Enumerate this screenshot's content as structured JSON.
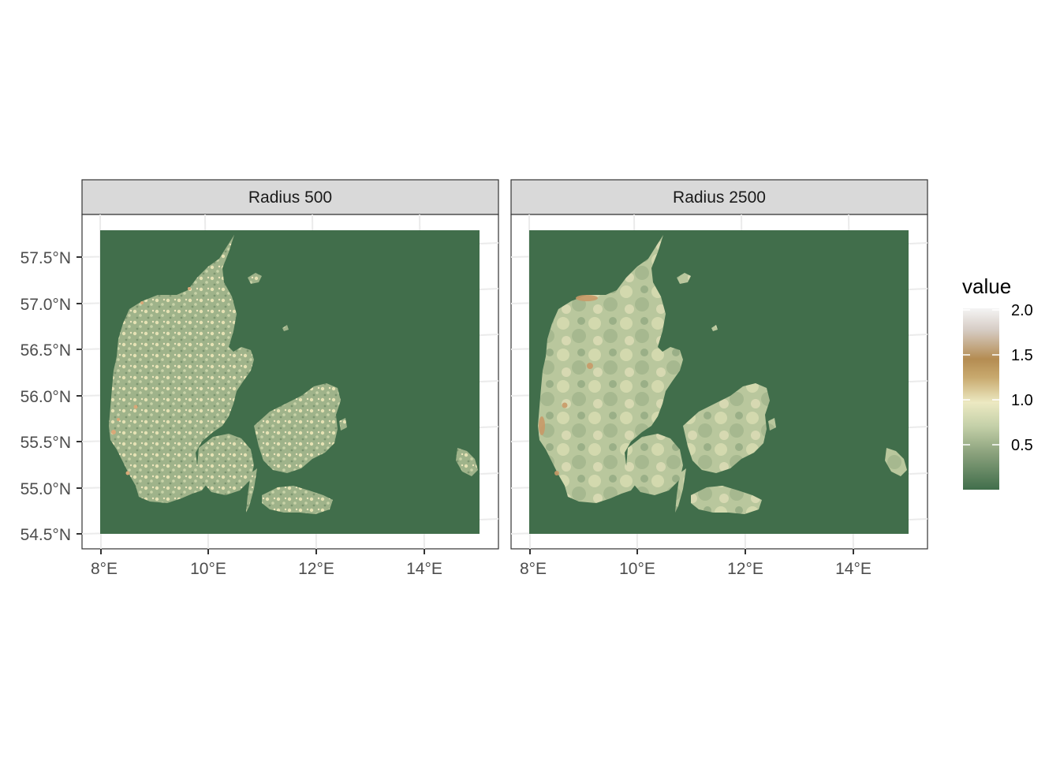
{
  "colors": {
    "sea": "#416e4b",
    "panel_border": "#333333",
    "strip_fill": "#d9d9d9",
    "grid": "#ebebeb",
    "gradient_stops": [
      "#416e4b",
      "#8aa17c",
      "#c4d0a8",
      "#ece9c2",
      "#c8a96e",
      "#b48c52",
      "#d6ccc4",
      "#f4f4f4"
    ]
  },
  "facets": [
    {
      "label": "Radius 500"
    },
    {
      "label": "Radius 2500"
    }
  ],
  "axes": {
    "x_ticks": [
      "8°E",
      "10°E",
      "12°E",
      "14°E"
    ],
    "y_ticks": [
      "57.5°N",
      "57.0°N",
      "56.5°N",
      "56.0°N",
      "55.5°N",
      "55.0°N",
      "54.5°N"
    ]
  },
  "legend": {
    "title": "value",
    "ticks": [
      "2.0",
      "1.5",
      "1.0",
      "0.5"
    ]
  }
}
